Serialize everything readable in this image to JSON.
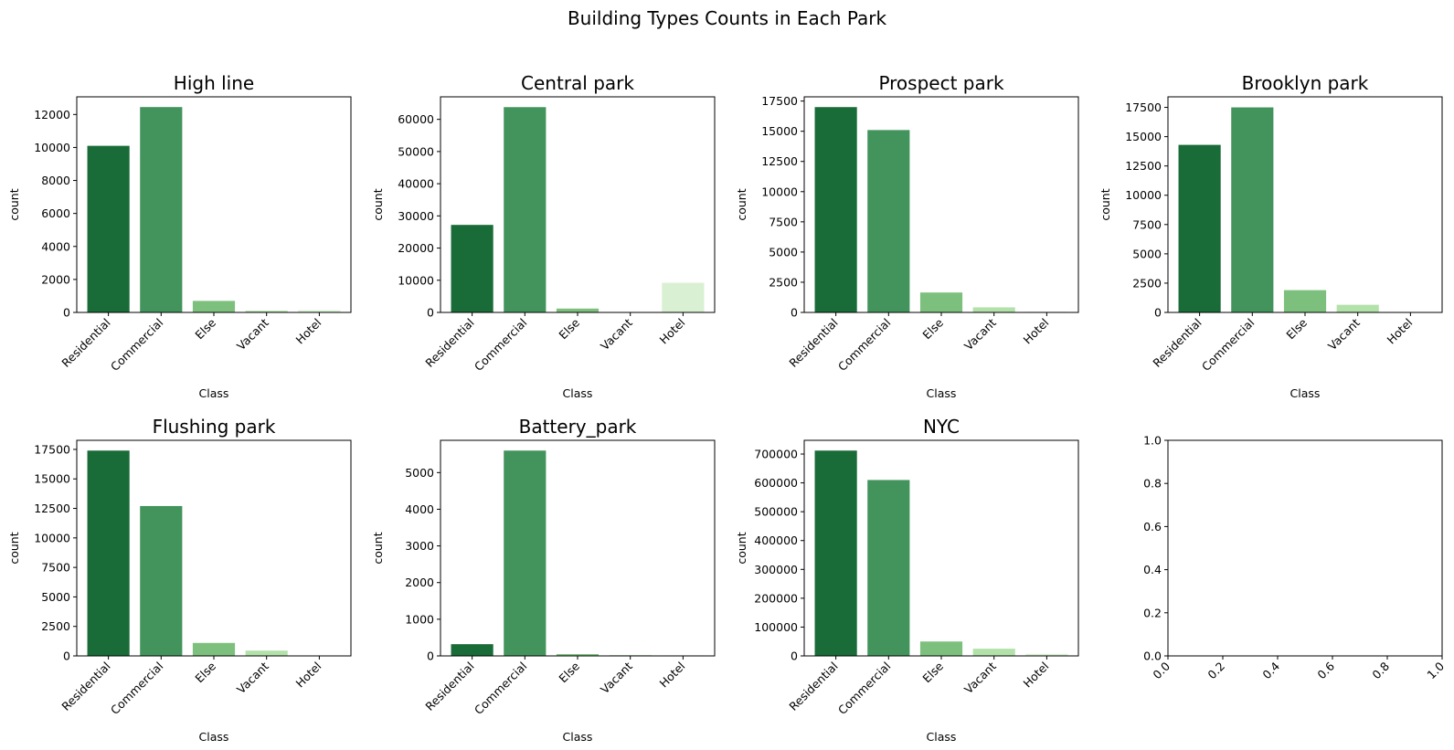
{
  "figure": {
    "title": "Building Types Counts in Each Park"
  },
  "colors": {
    "palette": [
      "#196b37",
      "#42945c",
      "#7dc07d",
      "#b3e1aa",
      "#d9f0d3"
    ]
  },
  "chart_data": [
    {
      "type": "bar",
      "title": "High line",
      "xlabel": "Class",
      "ylabel": "count",
      "categories": [
        "Residential",
        "Commercial",
        "Else",
        "Vacant",
        "Hotel"
      ],
      "values": [
        10100,
        12450,
        700,
        100,
        130
      ],
      "ylim": [
        0,
        13070
      ],
      "yticks": [
        0,
        2000,
        4000,
        6000,
        8000,
        10000,
        12000
      ],
      "ytick_labels": [
        "0",
        "2000",
        "4000",
        "6000",
        "8000",
        "10000",
        "12000"
      ],
      "grid": false
    },
    {
      "type": "bar",
      "title": "Central park",
      "xlabel": "Class",
      "ylabel": "count",
      "categories": [
        "Residential",
        "Commercial",
        "Else",
        "Vacant",
        "Hotel"
      ],
      "values": [
        27200,
        63800,
        1200,
        0,
        9200
      ],
      "ylim": [
        0,
        67000
      ],
      "yticks": [
        0,
        10000,
        20000,
        30000,
        40000,
        50000,
        60000
      ],
      "ytick_labels": [
        "0",
        "10000",
        "20000",
        "30000",
        "40000",
        "50000",
        "60000"
      ],
      "grid": false
    },
    {
      "type": "bar",
      "title": "Prospect park",
      "xlabel": "Class",
      "ylabel": "count",
      "categories": [
        "Residential",
        "Commercial",
        "Else",
        "Vacant",
        "Hotel"
      ],
      "values": [
        17000,
        15100,
        1650,
        420,
        50
      ],
      "ylim": [
        0,
        17850
      ],
      "yticks": [
        0,
        2500,
        5000,
        7500,
        10000,
        12500,
        15000,
        17500
      ],
      "ytick_labels": [
        "0",
        "2500",
        "5000",
        "7500",
        "10000",
        "12500",
        "15000",
        "17500"
      ],
      "grid": false
    },
    {
      "type": "bar",
      "title": "Brooklyn park",
      "xlabel": "Class",
      "ylabel": "count",
      "categories": [
        "Residential",
        "Commercial",
        "Else",
        "Vacant",
        "Hotel"
      ],
      "values": [
        14300,
        17500,
        1900,
        650,
        30
      ],
      "ylim": [
        0,
        18400
      ],
      "yticks": [
        0,
        2500,
        5000,
        7500,
        10000,
        12500,
        15000,
        17500
      ],
      "ytick_labels": [
        "0",
        "2500",
        "5000",
        "7500",
        "10000",
        "12500",
        "15000",
        "17500"
      ],
      "grid": false
    },
    {
      "type": "bar",
      "title": "Flushing park",
      "xlabel": "Class",
      "ylabel": "count",
      "categories": [
        "Residential",
        "Commercial",
        "Else",
        "Vacant",
        "Hotel"
      ],
      "values": [
        17400,
        12700,
        1100,
        450,
        40
      ],
      "ylim": [
        0,
        18270
      ],
      "yticks": [
        0,
        2500,
        5000,
        7500,
        10000,
        12500,
        15000,
        17500
      ],
      "ytick_labels": [
        "0",
        "2500",
        "5000",
        "7500",
        "10000",
        "12500",
        "15000",
        "17500"
      ],
      "grid": false
    },
    {
      "type": "bar",
      "title": "Battery_park",
      "xlabel": "Class",
      "ylabel": "count",
      "categories": [
        "Residential",
        "Commercial",
        "Else",
        "Vacant",
        "Hotel"
      ],
      "values": [
        320,
        5600,
        50,
        20,
        15
      ],
      "ylim": [
        0,
        5880
      ],
      "yticks": [
        0,
        1000,
        2000,
        3000,
        4000,
        5000
      ],
      "ytick_labels": [
        "0",
        "1000",
        "2000",
        "3000",
        "4000",
        "5000"
      ],
      "grid": false
    },
    {
      "type": "bar",
      "title": "NYC",
      "xlabel": "Class",
      "ylabel": "count",
      "categories": [
        "Residential",
        "Commercial",
        "Else",
        "Vacant",
        "Hotel"
      ],
      "values": [
        712000,
        610000,
        50000,
        25000,
        7000
      ],
      "ylim": [
        0,
        747600
      ],
      "yticks": [
        0,
        100000,
        200000,
        300000,
        400000,
        500000,
        600000,
        700000
      ],
      "ytick_labels": [
        "0",
        "100000",
        "200000",
        "300000",
        "400000",
        "500000",
        "600000",
        "700000"
      ],
      "grid": false
    },
    {
      "type": "bar",
      "title": "",
      "xlabel": "",
      "ylabel": "",
      "categories": [],
      "values": [],
      "xlim": [
        0,
        1
      ],
      "ylim": [
        0,
        1
      ],
      "xticks": [
        0,
        0.2,
        0.4,
        0.6,
        0.8,
        1.0
      ],
      "xtick_labels": [
        "0.0",
        "0.2",
        "0.4",
        "0.6",
        "0.8",
        "1.0"
      ],
      "yticks": [
        0,
        0.2,
        0.4,
        0.6,
        0.8,
        1.0
      ],
      "ytick_labels": [
        "0.0",
        "0.2",
        "0.4",
        "0.6",
        "0.8",
        "1.0"
      ],
      "grid": false
    }
  ]
}
